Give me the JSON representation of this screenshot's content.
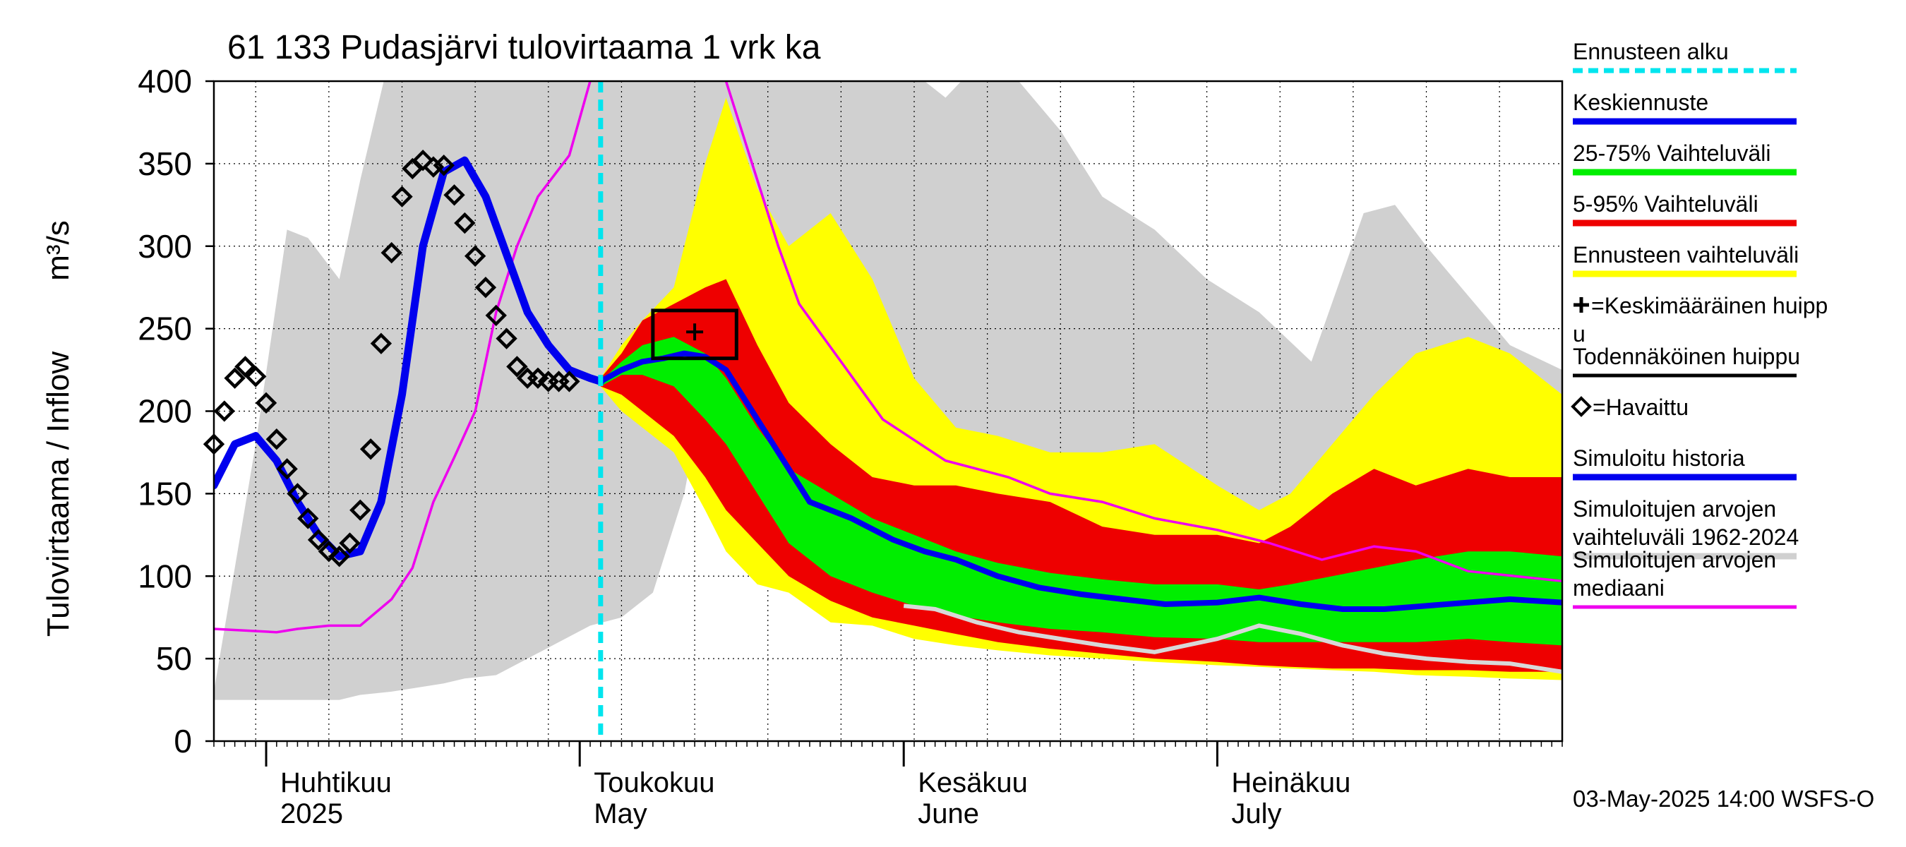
{
  "chart_data": {
    "type": "area",
    "title": "61 133 Pudasjärvi tulovirtaama 1 vrk ka",
    "ylabel": "Tulovirtaama / Inflow",
    "yunit": "m³/s",
    "ylim": [
      0,
      400
    ],
    "yticks": [
      "0",
      "50",
      "100",
      "150",
      "200",
      "250",
      "300",
      "350",
      "400"
    ],
    "xlim": [
      "2025-03-27",
      "2025-08-03"
    ],
    "months": [
      {
        "fi": "Huhtikuu",
        "en": "2025",
        "start": "2025-04-01"
      },
      {
        "fi": "Toukokuu",
        "en": "May",
        "start": "2025-05-01"
      },
      {
        "fi": "Kesäkuu",
        "en": "June",
        "start": "2025-06-01"
      },
      {
        "fi": "Heinäkuu",
        "en": "July",
        "start": "2025-07-01"
      }
    ],
    "forecast_start": "2025-05-03",
    "footer": "03-May-2025 14:00 WSFS-O",
    "legend": [
      {
        "label": "Ennusteen alku",
        "color": "#00e5ee",
        "style": "dashed"
      },
      {
        "label": "Keskiennuste",
        "color": "#0000ee",
        "style": "thick"
      },
      {
        "label": "25-75% Vaihteluväli",
        "color": "#00ee00",
        "style": "thick"
      },
      {
        "label": "5-95% Vaihteluväli",
        "color": "#ee0000",
        "style": "thick"
      },
      {
        "label": "Ennusteen vaihteluväli",
        "color": "#ffff00",
        "style": "thick"
      },
      {
        "label": "=Keskimääräinen huipp",
        "label2": "u",
        "symbol": "plus",
        "style": "none"
      },
      {
        "label": "Todennäköinen huippu",
        "color": "#000000",
        "style": "thin"
      },
      {
        "label": "=Havaittu",
        "symbol": "diamond",
        "style": "none"
      },
      {
        "label": "Simuloitu historia",
        "color": "#0000ee",
        "style": "thick"
      },
      {
        "label": "Simuloitujen arvojen",
        "label2": "vaihteluväli 1962-2024",
        "color": "#d0d0d0",
        "style": "thick"
      },
      {
        "label": "Simuloitujen arvojen",
        "label2": "mediaani",
        "color": "#ee00ee",
        "style": "thin"
      }
    ],
    "series": {
      "hist_range": {
        "color": "#d0d0d0",
        "dates": [
          "2025-03-27",
          "2025-03-31",
          "2025-04-03",
          "2025-04-05",
          "2025-04-08",
          "2025-04-10",
          "2025-04-13",
          "2025-04-15",
          "2025-04-18",
          "2025-04-20",
          "2025-04-23",
          "2025-04-26",
          "2025-04-29",
          "2025-05-02",
          "2025-05-05",
          "2025-05-08",
          "2025-05-11",
          "2025-05-14",
          "2025-05-16",
          "2025-05-19",
          "2025-05-22",
          "2025-05-25",
          "2025-05-29",
          "2025-06-01",
          "2025-06-05",
          "2025-06-08",
          "2025-06-12",
          "2025-06-16",
          "2025-06-20",
          "2025-06-25",
          "2025-06-30",
          "2025-07-05",
          "2025-07-10",
          "2025-07-15",
          "2025-07-18",
          "2025-07-21",
          "2025-07-25",
          "2025-07-29",
          "2025-08-03"
        ],
        "upper": [
          30,
          180,
          310,
          305,
          280,
          340,
          420,
          420,
          420,
          420,
          420,
          420,
          420,
          420,
          420,
          420,
          420,
          420,
          420,
          420,
          420,
          420,
          420,
          410,
          390,
          410,
          400,
          370,
          330,
          310,
          280,
          260,
          230,
          320,
          325,
          300,
          270,
          240,
          225
        ],
        "lower": [
          25,
          25,
          25,
          25,
          25,
          28,
          30,
          32,
          35,
          38,
          40,
          50,
          60,
          70,
          75,
          90,
          150,
          250,
          280,
          240,
          210,
          180,
          130,
          110,
          90,
          80,
          70,
          65,
          60,
          55,
          50,
          48,
          46,
          45,
          44,
          43,
          42,
          40,
          38
        ]
      },
      "median": {
        "color": "#ee00ee",
        "dates": [
          "2025-03-27",
          "2025-04-02",
          "2025-04-04",
          "2025-04-07",
          "2025-04-10",
          "2025-04-13",
          "2025-04-15",
          "2025-04-17",
          "2025-04-19",
          "2025-04-21",
          "2025-04-23",
          "2025-04-25",
          "2025-04-27",
          "2025-04-30",
          "2025-05-02",
          "2025-05-04",
          "2025-05-06",
          "2025-05-08",
          "2025-05-14",
          "2025-05-18",
          "2025-05-20",
          "2025-05-22",
          "2025-05-26",
          "2025-05-30",
          "2025-06-05",
          "2025-06-08",
          "2025-06-11",
          "2025-06-15",
          "2025-06-20",
          "2025-06-25",
          "2025-07-01",
          "2025-07-06",
          "2025-07-11",
          "2025-07-16",
          "2025-07-20",
          "2025-07-25",
          "2025-08-03"
        ],
        "values": [
          68,
          66,
          68,
          70,
          70,
          86,
          105,
          145,
          172,
          200,
          260,
          300,
          330,
          355,
          400,
          420,
          420,
          420,
          420,
          340,
          300,
          265,
          230,
          195,
          170,
          165,
          160,
          150,
          145,
          135,
          128,
          120,
          110,
          118,
          115,
          103,
          97
        ]
      },
      "forecast_full": {
        "color": "#ffff00",
        "dates": [
          "2025-05-03",
          "2025-05-05",
          "2025-05-07",
          "2025-05-10",
          "2025-05-13",
          "2025-05-15",
          "2025-05-18",
          "2025-05-21",
          "2025-05-25",
          "2025-05-29",
          "2025-06-02",
          "2025-06-06",
          "2025-06-10",
          "2025-06-15",
          "2025-06-20",
          "2025-06-25",
          "2025-07-01",
          "2025-07-05",
          "2025-07-08",
          "2025-07-12",
          "2025-07-16",
          "2025-07-20",
          "2025-07-25",
          "2025-07-29",
          "2025-08-03"
        ],
        "upper": [
          220,
          240,
          255,
          275,
          350,
          390,
          335,
          300,
          320,
          280,
          220,
          190,
          185,
          175,
          175,
          180,
          155,
          140,
          150,
          180,
          210,
          235,
          245,
          235,
          210
        ],
        "lower": [
          215,
          200,
          190,
          175,
          140,
          115,
          95,
          90,
          72,
          70,
          62,
          58,
          55,
          52,
          50,
          48,
          46,
          45,
          44,
          43,
          42,
          40,
          39,
          38,
          37
        ]
      },
      "forecast_5_95": {
        "color": "#ee0000",
        "dates": [
          "2025-05-03",
          "2025-05-05",
          "2025-05-07",
          "2025-05-10",
          "2025-05-13",
          "2025-05-15",
          "2025-05-18",
          "2025-05-21",
          "2025-05-25",
          "2025-05-29",
          "2025-06-02",
          "2025-06-06",
          "2025-06-10",
          "2025-06-15",
          "2025-06-20",
          "2025-06-25",
          "2025-07-01",
          "2025-07-05",
          "2025-07-08",
          "2025-07-12",
          "2025-07-16",
          "2025-07-20",
          "2025-07-25",
          "2025-07-29",
          "2025-08-03"
        ],
        "upper": [
          220,
          235,
          255,
          265,
          275,
          280,
          240,
          205,
          180,
          160,
          155,
          155,
          150,
          145,
          130,
          125,
          125,
          120,
          130,
          150,
          165,
          155,
          165,
          160,
          160
        ],
        "lower": [
          215,
          210,
          200,
          185,
          160,
          140,
          120,
          100,
          85,
          75,
          70,
          65,
          60,
          56,
          53,
          50,
          48,
          46,
          45,
          44,
          44,
          43,
          43,
          42,
          42
        ]
      },
      "forecast_25_75": {
        "color": "#00ee00",
        "dates": [
          "2025-05-03",
          "2025-05-05",
          "2025-05-07",
          "2025-05-10",
          "2025-05-13",
          "2025-05-15",
          "2025-05-18",
          "2025-05-21",
          "2025-05-25",
          "2025-05-29",
          "2025-06-02",
          "2025-06-06",
          "2025-06-10",
          "2025-06-15",
          "2025-06-20",
          "2025-06-25",
          "2025-07-01",
          "2025-07-05",
          "2025-07-08",
          "2025-07-12",
          "2025-07-16",
          "2025-07-20",
          "2025-07-25",
          "2025-07-29",
          "2025-08-03"
        ],
        "upper": [
          218,
          230,
          240,
          245,
          235,
          220,
          190,
          165,
          150,
          135,
          125,
          115,
          108,
          102,
          98,
          95,
          95,
          92,
          95,
          100,
          105,
          110,
          115,
          115,
          112
        ],
        "lower": [
          215,
          222,
          222,
          215,
          195,
          180,
          150,
          120,
          100,
          90,
          82,
          76,
          72,
          68,
          66,
          63,
          62,
          60,
          60,
          60,
          60,
          60,
          62,
          60,
          58
        ]
      },
      "forecast_mean": {
        "color": "#0000ee",
        "dates": [
          "2025-05-03",
          "2025-05-05",
          "2025-05-07",
          "2025-05-09",
          "2025-05-11",
          "2025-05-13",
          "2025-05-15",
          "2025-05-17",
          "2025-05-20",
          "2025-05-23",
          "2025-05-27",
          "2025-05-31",
          "2025-06-03",
          "2025-06-06",
          "2025-06-10",
          "2025-06-14",
          "2025-06-18",
          "2025-06-22",
          "2025-06-26",
          "2025-07-01",
          "2025-07-05",
          "2025-07-09",
          "2025-07-13",
          "2025-07-17",
          "2025-07-21",
          "2025-07-25",
          "2025-07-29",
          "2025-08-03"
        ],
        "values": [
          218,
          225,
          230,
          232,
          235,
          233,
          225,
          205,
          175,
          145,
          135,
          122,
          115,
          110,
          100,
          93,
          89,
          86,
          83,
          84,
          87,
          83,
          80,
          80,
          82,
          84,
          86,
          84
        ]
      },
      "hist_sim_median": {
        "color": "#d8d8d8",
        "dates": [
          "2025-06-01",
          "2025-06-04",
          "2025-06-08",
          "2025-06-12",
          "2025-06-16",
          "2025-06-20",
          "2025-06-25",
          "2025-07-01",
          "2025-07-05",
          "2025-07-09",
          "2025-07-13",
          "2025-07-17",
          "2025-07-21",
          "2025-07-25",
          "2025-07-29",
          "2025-08-03"
        ],
        "values": [
          82,
          80,
          72,
          66,
          62,
          58,
          54,
          62,
          70,
          65,
          58,
          53,
          50,
          48,
          47,
          42
        ]
      },
      "simulated_history": {
        "color": "#0000ee",
        "dates": [
          "2025-03-27",
          "2025-03-29",
          "2025-03-31",
          "2025-04-02",
          "2025-04-04",
          "2025-04-06",
          "2025-04-08",
          "2025-04-10",
          "2025-04-12",
          "2025-04-14",
          "2025-04-16",
          "2025-04-18",
          "2025-04-20",
          "2025-04-22",
          "2025-04-24",
          "2025-04-26",
          "2025-04-28",
          "2025-04-30",
          "2025-05-02",
          "2025-05-03"
        ],
        "values": [
          155,
          180,
          185,
          170,
          145,
          125,
          112,
          115,
          145,
          210,
          300,
          345,
          352,
          330,
          295,
          260,
          240,
          225,
          220,
          218
        ]
      },
      "observed": {
        "dates": [
          "2025-03-27",
          "2025-03-28",
          "2025-03-29",
          "2025-03-30",
          "2025-03-31",
          "2025-04-01",
          "2025-04-02",
          "2025-04-03",
          "2025-04-04",
          "2025-04-05",
          "2025-04-06",
          "2025-04-07",
          "2025-04-08",
          "2025-04-09",
          "2025-04-10",
          "2025-04-11",
          "2025-04-12",
          "2025-04-13",
          "2025-04-14",
          "2025-04-15",
          "2025-04-16",
          "2025-04-17",
          "2025-04-18",
          "2025-04-19",
          "2025-04-20",
          "2025-04-21",
          "2025-04-22",
          "2025-04-23",
          "2025-04-24",
          "2025-04-25",
          "2025-04-26",
          "2025-04-27",
          "2025-04-28",
          "2025-04-29",
          "2025-04-30"
        ],
        "values": [
          180,
          200,
          220,
          227,
          221,
          205,
          183,
          165,
          150,
          135,
          122,
          115,
          112,
          120,
          140,
          177,
          241,
          296,
          330,
          347,
          352,
          348,
          349,
          331,
          314,
          294,
          275,
          258,
          244,
          227,
          220,
          220,
          218,
          218,
          218
        ]
      }
    },
    "peak_box": {
      "x0": "2025-05-08",
      "x1": "2025-05-16",
      "y0": 232,
      "y1": 261
    },
    "mean_peak": {
      "date": "2025-05-12",
      "value": 248
    }
  }
}
